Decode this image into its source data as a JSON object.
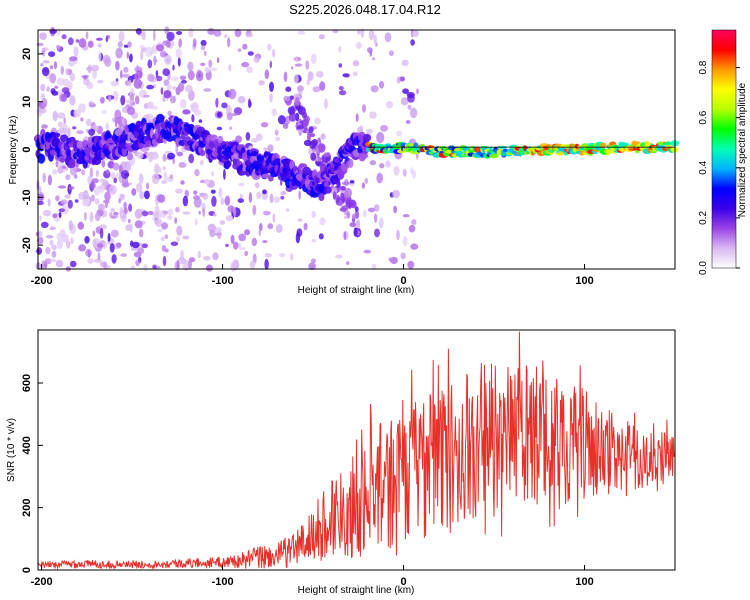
{
  "title": "S225.2026.048.17.04.R12",
  "chart_data": [
    {
      "type": "heatmap",
      "xlabel": "Height of straight line (km)",
      "ylabel": "Frequency (Hz)",
      "xlim": [
        -202,
        150
      ],
      "ylim": [
        -25,
        25
      ],
      "xticks": [
        -200,
        -100,
        0,
        100
      ],
      "yticks": [
        -20,
        -10,
        0,
        10,
        20
      ],
      "colorbar": {
        "label": "Normalized spectral amplitude",
        "range": [
          0,
          0.95
        ],
        "ticks": [
          "0.0",
          "0.2",
          "0.4",
          "0.6",
          "0.8"
        ],
        "tick_values": [
          0,
          0.2,
          0.4,
          0.6,
          0.8
        ],
        "colors": [
          "#ffffff",
          "#d9b8f2",
          "#9a44e6",
          "#3a00e6",
          "#0000ff",
          "#00b4ff",
          "#00ffb4",
          "#00ff00",
          "#b4ff00",
          "#ffff00",
          "#ff9a00",
          "#ff0000",
          "#ff0060"
        ]
      },
      "ridge": {
        "description_points_x": [
          -200,
          -180,
          -160,
          -130,
          -110,
          -90,
          -70,
          -55,
          -45,
          -35,
          -25,
          -10,
          0,
          20,
          50,
          80,
          100,
          130,
          150
        ],
        "description_points_y": [
          1.5,
          -1,
          1,
          5,
          1,
          -2,
          -4,
          -6,
          -8,
          -3,
          1,
          0,
          0.5,
          -0.5,
          -0.5,
          0,
          0,
          0.5,
          0.5
        ]
      }
    },
    {
      "type": "line",
      "xlabel": "Height of straight line (km)",
      "ylabel": "SNR (10 * v/v)",
      "xlim": [
        -202,
        150
      ],
      "ylim": [
        0,
        770
      ],
      "xticks": [
        -200,
        -100,
        0,
        100
      ],
      "yticks": [
        0,
        200,
        400,
        600
      ],
      "series": [
        {
          "name": "SNR",
          "color": "#e8302a",
          "envelope_x": [
            -202,
            -180,
            -160,
            -140,
            -120,
            -100,
            -90,
            -80,
            -70,
            -60,
            -50,
            -40,
            -30,
            -25,
            -20,
            -15,
            -10,
            0,
            10,
            20,
            30,
            40,
            50,
            60,
            70,
            80,
            90,
            100,
            110,
            120,
            130,
            140,
            150
          ],
          "envelope_mean": [
            15,
            20,
            18,
            18,
            22,
            25,
            30,
            40,
            45,
            70,
            110,
            170,
            220,
            250,
            280,
            290,
            300,
            330,
            340,
            360,
            380,
            400,
            420,
            430,
            420,
            420,
            410,
            400,
            380,
            370,
            360,
            360,
            360
          ],
          "envelope_amp": [
            10,
            15,
            12,
            12,
            15,
            18,
            25,
            40,
            40,
            60,
            90,
            140,
            180,
            220,
            220,
            200,
            200,
            220,
            220,
            230,
            240,
            250,
            250,
            250,
            240,
            220,
            200,
            180,
            150,
            120,
            100,
            90,
            80
          ]
        }
      ]
    }
  ]
}
